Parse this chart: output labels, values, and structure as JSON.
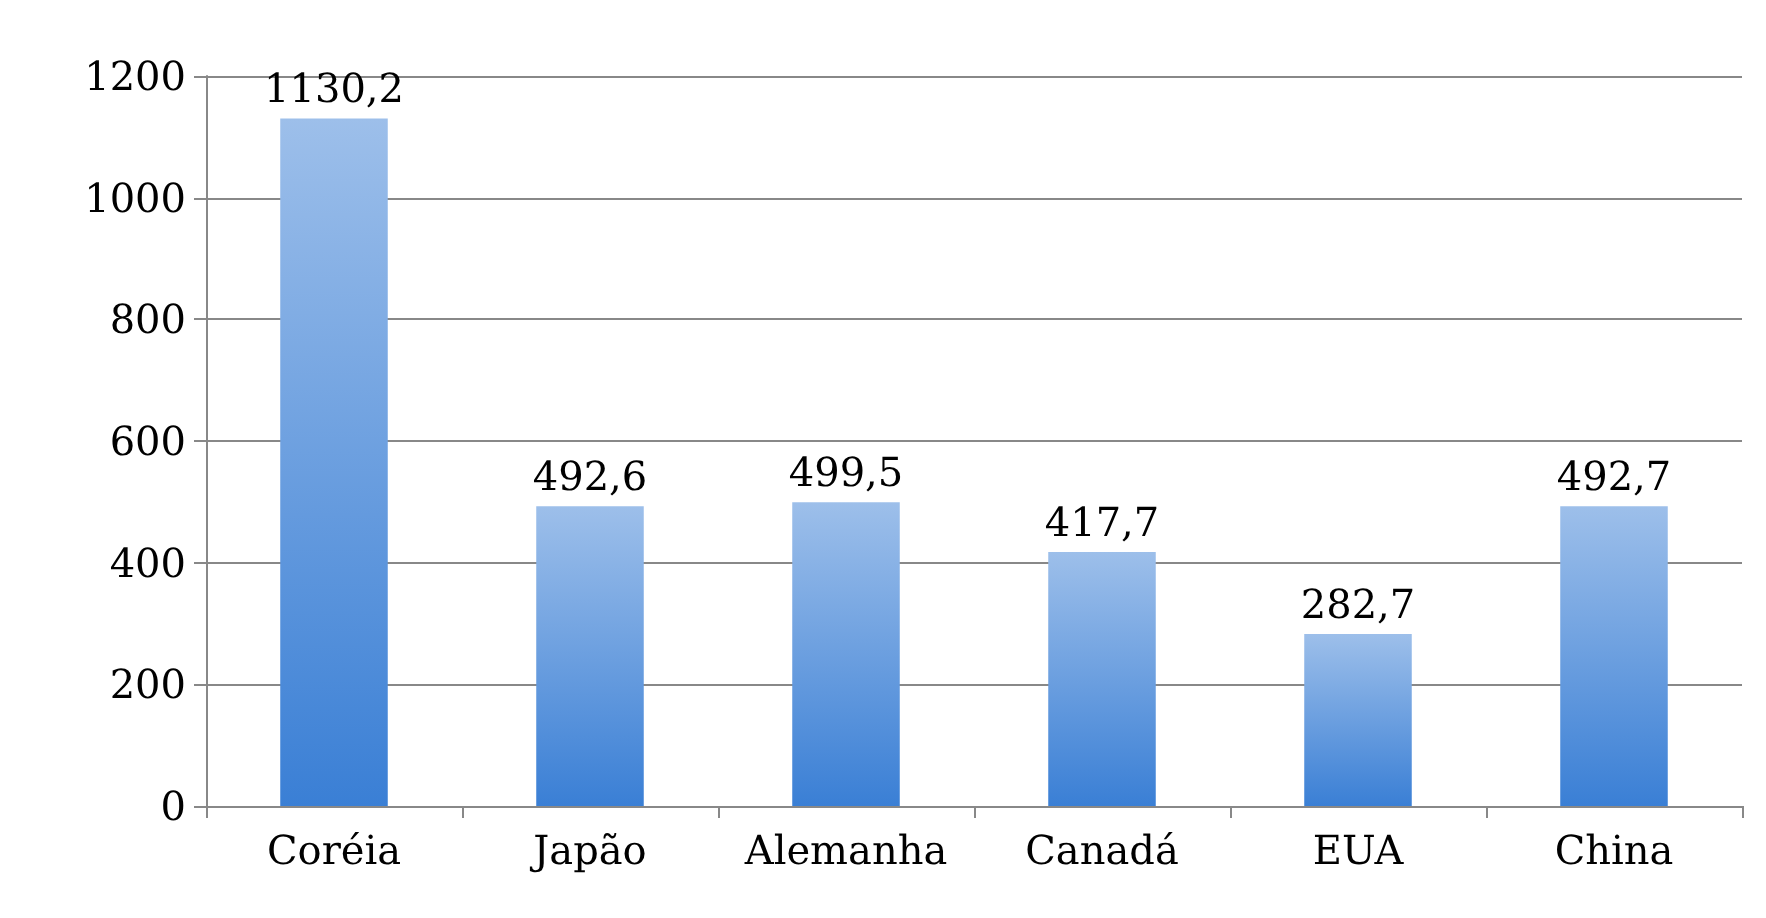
{
  "chart_data": {
    "type": "bar",
    "categories": [
      "Coréia",
      "Japão",
      "Alemanha",
      "Canadá",
      "EUA",
      "China"
    ],
    "values": [
      1130.2,
      492.6,
      499.5,
      417.7,
      282.7,
      492.7
    ],
    "value_labels": [
      "1130,2",
      "492,6",
      "499,5",
      "417,7",
      "282,7",
      "492,7"
    ],
    "color": "#3a7fd5",
    "ylim": [
      0,
      1200
    ],
    "yticks": [
      0,
      200,
      400,
      600,
      800,
      1000,
      1200
    ],
    "grid": "y"
  }
}
